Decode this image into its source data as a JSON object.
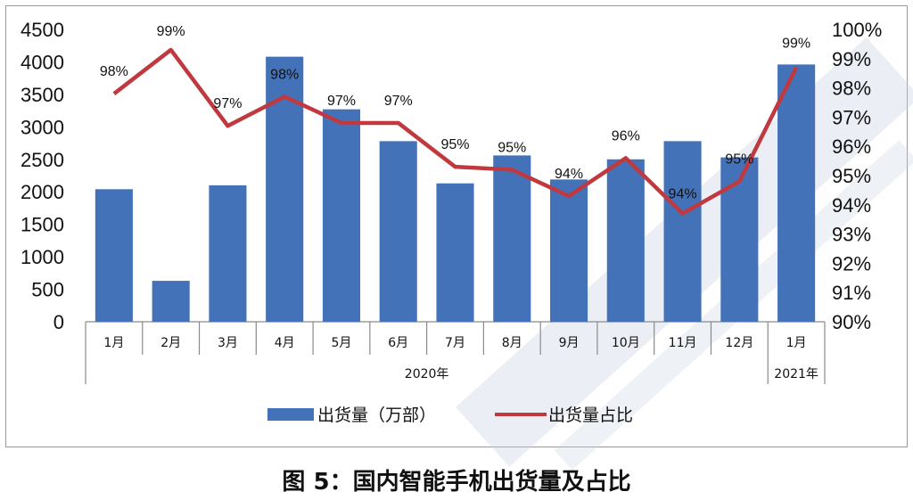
{
  "chart_data": {
    "type": "bar",
    "categories": [
      "1月",
      "2月",
      "3月",
      "4月",
      "5月",
      "6月",
      "7月",
      "8月",
      "9月",
      "10月",
      "11月",
      "12月",
      "1月"
    ],
    "year_groups": [
      {
        "label": "2020年",
        "count": 12
      },
      {
        "label": "2021年",
        "count": 1
      }
    ],
    "series": [
      {
        "name": "出货量（万部）",
        "type": "bar",
        "axis": "left",
        "color": "#4472b8",
        "values": [
          2040,
          630,
          2100,
          4080,
          3270,
          2780,
          2130,
          2560,
          2190,
          2500,
          2780,
          2530,
          3960
        ]
      },
      {
        "name": "出货量占比",
        "type": "line",
        "axis": "right",
        "color": "#c0393f",
        "values": [
          97.8,
          99.3,
          96.7,
          97.7,
          96.8,
          96.8,
          95.3,
          95.2,
          94.3,
          95.6,
          93.7,
          94.8,
          98.7
        ],
        "data_labels": [
          "98%",
          "99%",
          "97%",
          "98%",
          "97%",
          "97%",
          "95%",
          "95%",
          "94%",
          "96%",
          "94%",
          "95%",
          "99%"
        ]
      }
    ],
    "y_left": {
      "min": 0,
      "max": 4500,
      "ticks": [
        "0",
        "500",
        "1000",
        "1500",
        "2000",
        "2500",
        "3000",
        "3500",
        "4000",
        "4500"
      ]
    },
    "y_right": {
      "min": 90,
      "max": 100,
      "ticks": [
        "90%",
        "91%",
        "92%",
        "93%",
        "94%",
        "95%",
        "96%",
        "97%",
        "98%",
        "99%",
        "100%"
      ]
    },
    "legend_position": "bottom",
    "grid": false
  },
  "caption": "图 5：国内智能手机出货量及占比"
}
